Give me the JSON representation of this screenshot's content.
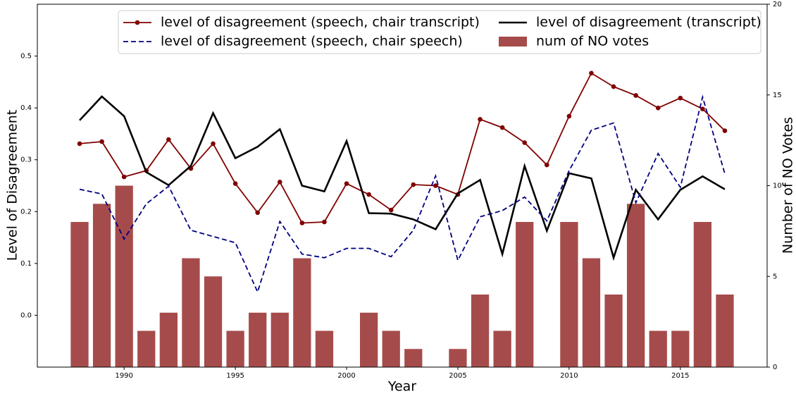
{
  "chart_data": {
    "type": "combo",
    "xlabel": "Year",
    "ylabel": "Level of Disagreement",
    "y2label": "Number of NO Votes",
    "x": [
      1988,
      1989,
      1990,
      1991,
      1992,
      1993,
      1994,
      1995,
      1996,
      1997,
      1998,
      1999,
      2000,
      2001,
      2002,
      2003,
      2004,
      2005,
      2006,
      2007,
      2008,
      2009,
      2010,
      2011,
      2012,
      2013,
      2014,
      2015,
      2016,
      2017
    ],
    "xlim": [
      1986.1,
      2018.9
    ],
    "xticks": [
      1990,
      1995,
      2000,
      2005,
      2010,
      2015
    ],
    "ylim": [
      -0.1,
      0.6
    ],
    "yticks": [
      {
        "value": 0,
        "label": "0.0"
      },
      0.1,
      0.2,
      0.3,
      0.4,
      0.5
    ],
    "y2lim": [
      0,
      20
    ],
    "y2ticks": [
      0,
      5,
      10,
      15,
      20
    ],
    "legend": "upper right",
    "series": [
      {
        "name": "level of disagreement (speech, chair transcript)",
        "type": "line",
        "marker": "circle",
        "color": "#800000",
        "values": [
          0.331,
          0.335,
          0.267,
          0.279,
          0.339,
          0.283,
          0.331,
          0.254,
          0.198,
          0.257,
          0.178,
          0.18,
          0.254,
          0.233,
          0.203,
          0.252,
          0.25,
          0.233,
          0.378,
          0.362,
          0.333,
          0.29,
          0.384,
          0.467,
          0.441,
          0.424,
          0.4,
          0.419,
          0.398,
          0.356
        ]
      },
      {
        "name": "level of disagreement (transcript)",
        "type": "line",
        "color": "#000000",
        "values": [
          0.376,
          0.422,
          0.384,
          0.276,
          0.251,
          0.288,
          0.39,
          0.303,
          0.325,
          0.359,
          0.25,
          0.239,
          0.336,
          0.197,
          0.196,
          0.185,
          0.166,
          0.235,
          0.261,
          0.118,
          0.288,
          0.163,
          0.274,
          0.264,
          0.111,
          0.242,
          0.185,
          0.242,
          0.268,
          0.243
        ]
      },
      {
        "name": "level of disagreement (speech, chair speech)",
        "type": "line",
        "dashed": true,
        "color": "#000080",
        "values": [
          0.243,
          0.234,
          0.147,
          0.215,
          0.249,
          0.164,
          0.152,
          0.14,
          0.045,
          0.181,
          0.118,
          0.111,
          0.129,
          0.129,
          0.113,
          0.164,
          0.269,
          0.106,
          0.19,
          0.202,
          0.228,
          0.182,
          0.279,
          0.357,
          0.371,
          0.217,
          0.312,
          0.247,
          0.421,
          0.273
        ]
      },
      {
        "name": "num of NO votes",
        "type": "bar",
        "axis": "y2",
        "color": "#a64b4b",
        "values": [
          8,
          9,
          10,
          2,
          3,
          6,
          5,
          2,
          3,
          3,
          6,
          2,
          0,
          3,
          2,
          1,
          0,
          1,
          4,
          2,
          8,
          0,
          8,
          6,
          4,
          9,
          2,
          2,
          8,
          4
        ]
      }
    ]
  }
}
